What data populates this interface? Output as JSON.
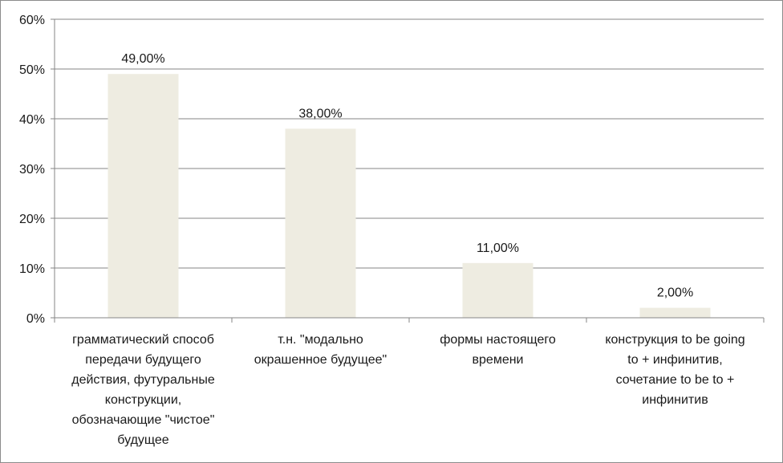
{
  "chart_data": {
    "type": "bar",
    "categories": [
      "грамматический способ\nпередачи будущего\nдействия, футуральные\nконструкции,\nобозначающие \"чистое\"\nбудущее",
      "т.н. \"модально\nокрашенное будущее\"",
      "формы настоящего\nвремени",
      "конструкция to be going\nto + инфинитив,\nсочетание to be to +\nинфинитив"
    ],
    "values": [
      49,
      38,
      11,
      2
    ],
    "data_labels": [
      "49,00%",
      "38,00%",
      "11,00%",
      "2,00%"
    ],
    "ylim": [
      0,
      60
    ],
    "y_ticks": [
      0,
      10,
      20,
      30,
      40,
      50,
      60
    ],
    "y_tick_labels": [
      "0%",
      "10%",
      "20%",
      "30%",
      "40%",
      "50%",
      "60%"
    ],
    "grid": true,
    "bar_color": "#eeece1",
    "grid_color": "#868686",
    "axis_color": "#868686",
    "title": "",
    "xlabel": "",
    "ylabel": ""
  }
}
